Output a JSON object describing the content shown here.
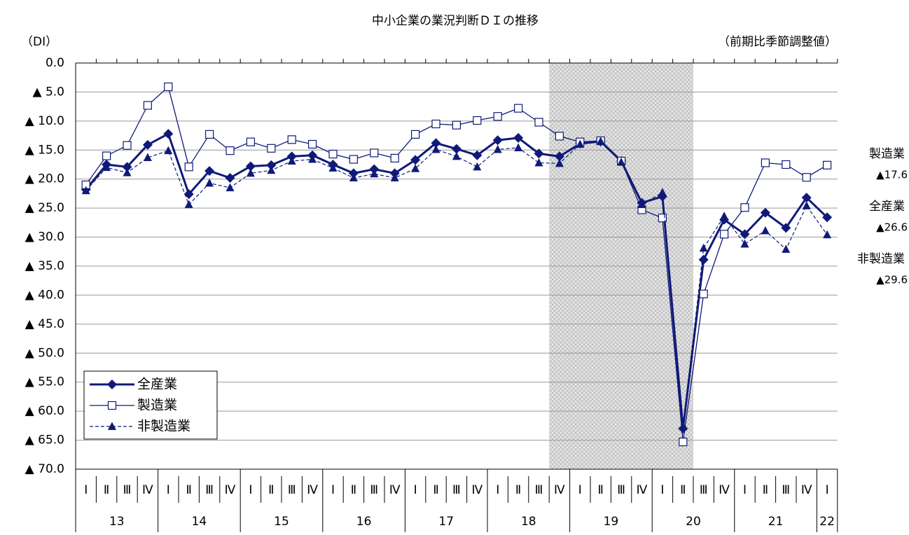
{
  "chart_data": {
    "type": "line",
    "title": "中小企業の業況判断ＤＩの推移",
    "y_label": "（DI）",
    "note": "（前期比季節調整値）",
    "categories": [
      "Ⅰ",
      "Ⅱ",
      "Ⅲ",
      "Ⅳ",
      "Ⅰ",
      "Ⅱ",
      "Ⅲ",
      "Ⅳ",
      "Ⅰ",
      "Ⅱ",
      "Ⅲ",
      "Ⅳ",
      "Ⅰ",
      "Ⅱ",
      "Ⅲ",
      "Ⅳ",
      "Ⅰ",
      "Ⅱ",
      "Ⅲ",
      "Ⅳ",
      "Ⅰ",
      "Ⅱ",
      "Ⅲ",
      "Ⅳ",
      "Ⅰ",
      "Ⅱ",
      "Ⅲ",
      "Ⅳ",
      "Ⅰ",
      "Ⅱ",
      "Ⅲ",
      "Ⅳ",
      "Ⅰ",
      "Ⅱ",
      "Ⅲ",
      "Ⅳ",
      "Ⅰ"
    ],
    "years": [
      "13",
      "14",
      "15",
      "16",
      "17",
      "18",
      "19",
      "20",
      "21",
      "22"
    ],
    "shade_categories": [
      23,
      29
    ],
    "ylim": [
      -70,
      0
    ],
    "yticks": [
      {
        "value": 0,
        "label": "0.0"
      },
      {
        "value": -5,
        "label": "▲ 5.0"
      },
      {
        "value": -10,
        "label": "▲ 10.0"
      },
      {
        "value": -15,
        "label": "▲ 15.0"
      },
      {
        "value": -20,
        "label": "▲ 20.0"
      },
      {
        "value": -25,
        "label": "▲ 25.0"
      },
      {
        "value": -30,
        "label": "▲ 30.0"
      },
      {
        "value": -35,
        "label": "▲ 35.0"
      },
      {
        "value": -40,
        "label": "▲ 40.0"
      },
      {
        "value": -45,
        "label": "▲ 45.0"
      },
      {
        "value": -50,
        "label": "▲ 50.0"
      },
      {
        "value": -55,
        "label": "▲ 55.0"
      },
      {
        "value": -60,
        "label": "▲ 60.0"
      },
      {
        "value": -65,
        "label": "▲ 65.0"
      },
      {
        "value": -70,
        "label": "▲ 70.0"
      }
    ],
    "grid": true,
    "legend": "bottom-left",
    "series": [
      {
        "name": "全産業",
        "color": "#0f1a78",
        "marker": "diamond",
        "line_width": 3,
        "dashed": false,
        "end_label": "▲26.6",
        "values": [
          -21.8,
          -17.5,
          -17.9,
          -14.1,
          -12.2,
          -22.6,
          -18.6,
          -19.8,
          -17.8,
          -17.6,
          -16.1,
          -15.9,
          -17.5,
          -19.0,
          -18.3,
          -19.0,
          -16.7,
          -13.8,
          -14.8,
          -15.9,
          -13.3,
          -12.9,
          -15.6,
          -16.1,
          -13.9,
          -13.5,
          -16.9,
          -24.1,
          -23.0,
          -63.0,
          -33.9,
          -27.0,
          -29.5,
          -25.8,
          -28.4,
          -23.2,
          -26.6
        ]
      },
      {
        "name": "製造業",
        "color": "#0f1a78",
        "marker": "square",
        "line_width": 1.3,
        "dashed": false,
        "end_label": "▲17.6",
        "values": [
          -21.0,
          -16.0,
          -14.2,
          -7.3,
          -4.1,
          -17.9,
          -12.3,
          -15.1,
          -13.6,
          -14.7,
          -13.2,
          -14.0,
          -15.7,
          -16.6,
          -15.5,
          -16.4,
          -12.3,
          -10.5,
          -10.7,
          -9.9,
          -9.2,
          -7.8,
          -10.2,
          -12.6,
          -13.6,
          -13.4,
          -16.9,
          -25.3,
          -26.7,
          -65.3,
          -39.8,
          -29.5,
          -24.9,
          -17.2,
          -17.5,
          -19.7,
          -17.6
        ]
      },
      {
        "name": "非製造業",
        "color": "#0f1a78",
        "marker": "triangle",
        "line_width": 1.2,
        "dashed": true,
        "end_label": "▲29.6",
        "values": [
          -22.0,
          -18.0,
          -18.9,
          -16.3,
          -15.1,
          -24.4,
          -20.7,
          -21.5,
          -19.0,
          -18.5,
          -16.9,
          -16.6,
          -18.1,
          -19.8,
          -19.1,
          -19.8,
          -18.2,
          -14.9,
          -16.1,
          -17.9,
          -14.9,
          -14.6,
          -17.2,
          -17.3,
          -14.0,
          -13.5,
          -17.1,
          -24.4,
          -22.3,
          -62.6,
          -31.9,
          -26.4,
          -31.2,
          -28.9,
          -32.1,
          -24.6,
          -29.6
        ]
      }
    ]
  }
}
